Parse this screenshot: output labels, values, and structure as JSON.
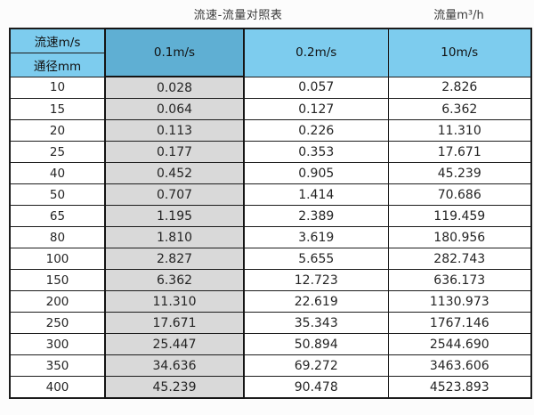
{
  "colors": {
    "header_blue": "#7dccee",
    "header_blue_highlight": "#5fafd3",
    "shaded_column_gray": "#d9d9d9",
    "border": "#1c1c1c",
    "page_background": "#fcfcfc"
  },
  "chart_data": {
    "type": "table",
    "title": "流速-流量对照表",
    "unit_label": "流量m³/h",
    "corner_labels": {
      "top": "流速m/s",
      "bottom": "通径mm"
    },
    "columns": [
      "0.1m/s",
      "0.2m/s",
      "10m/s"
    ],
    "row_headers": [
      "10",
      "15",
      "20",
      "25",
      "40",
      "50",
      "65",
      "80",
      "100",
      "150",
      "200",
      "250",
      "300",
      "350",
      "400"
    ],
    "cells": [
      [
        "0.028",
        "0.057",
        "2.826"
      ],
      [
        "0.064",
        "0.127",
        "6.362"
      ],
      [
        "0.113",
        "0.226",
        "11.310"
      ],
      [
        "0.177",
        "0.353",
        "17.671"
      ],
      [
        "0.452",
        "0.905",
        "45.239"
      ],
      [
        "0.707",
        "1.414",
        "70.686"
      ],
      [
        "1.195",
        "2.389",
        "119.459"
      ],
      [
        "1.810",
        "3.619",
        "180.956"
      ],
      [
        "2.827",
        "5.655",
        "282.743"
      ],
      [
        "6.362",
        "12.723",
        "636.173"
      ],
      [
        "11.310",
        "22.619",
        "1130.973"
      ],
      [
        "17.671",
        "35.343",
        "1767.146"
      ],
      [
        "25.447",
        "50.894",
        "2544.690"
      ],
      [
        "34.636",
        "69.272",
        "3463.606"
      ],
      [
        "45.239",
        "90.478",
        "4523.893"
      ]
    ],
    "layout_hints": {
      "shaded_column": "0.1m/s",
      "header_rows": 2,
      "grid": true
    }
  }
}
